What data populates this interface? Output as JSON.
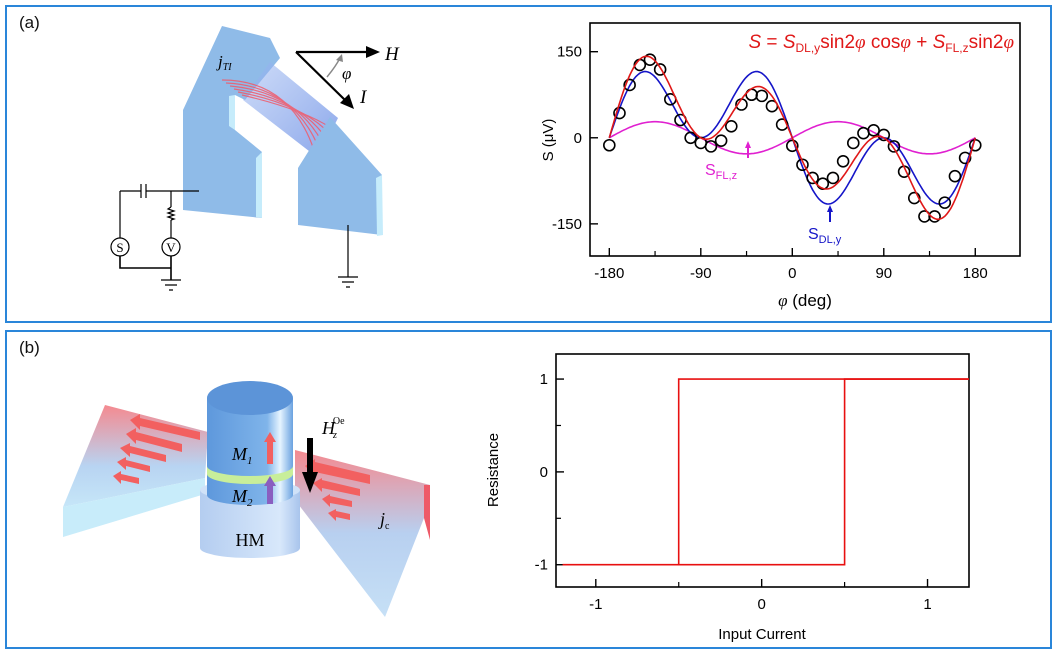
{
  "panels": {
    "a": {
      "label": "(a)",
      "diagram": {
        "current_label": "j",
        "current_sub": "TI",
        "field_label": "H",
        "angle_label": "φ",
        "current_dir_label": "I",
        "source_label": "S",
        "voltmeter_label": "V"
      }
    },
    "b": {
      "label": "(b)",
      "diagram": {
        "m1_label": "M",
        "m1_sub": "1",
        "m2_label": "M",
        "m2_sub": "2",
        "hm_label": "HM",
        "field_label": "H",
        "field_sub": "z",
        "field_sup": "Oe",
        "current_label": "j",
        "current_sub": "c"
      }
    }
  },
  "chart_data": [
    {
      "type": "scatter",
      "title": "",
      "equation": {
        "lhs": "S",
        "eq": " = ",
        "t1": "S",
        "t1_sub": "DL,y",
        "t1_fn": "sin2",
        "phi": "φ",
        "cos": " cos",
        "plus": " + ",
        "t2": "S",
        "t2_sub": "FL,z",
        "t2_fn": "sin2"
      },
      "xlabel": "φ (deg)",
      "xlabel_sym": "φ",
      "xlabel_unit": " (deg)",
      "ylabel": "S (μV)",
      "xlim": [
        -199,
        224
      ],
      "ylim": [
        -206,
        200
      ],
      "xticks": [
        -180,
        -90,
        0,
        90,
        180
      ],
      "xtick_labels": [
        "-180",
        "-90",
        "0",
        "90",
        "180"
      ],
      "yticks": [
        150,
        0,
        -150
      ],
      "ytick_labels": [
        "150",
        "0",
        "-150"
      ],
      "grid": false,
      "data": {
        "x": [
          -180,
          -170,
          -160,
          -150,
          -140,
          -130,
          -120,
          -110,
          -100,
          -90,
          -80,
          -70,
          -60,
          -50,
          -40,
          -30,
          -20,
          -10,
          0,
          10,
          20,
          30,
          40,
          50,
          60,
          70,
          80,
          90,
          100,
          110,
          120,
          130,
          140,
          150,
          160,
          170,
          180
        ],
        "y": [
          -13,
          43,
          92,
          127,
          136,
          119,
          67,
          31,
          0,
          -9,
          -15,
          -5,
          20,
          58,
          75,
          73,
          55,
          23,
          -14,
          -47,
          -70,
          -80,
          -70,
          -41,
          -9,
          8,
          13,
          5,
          -15,
          -59,
          -105,
          -137,
          -137,
          -113,
          -67,
          -35,
          -13
        ],
        "marker": "open-circle",
        "color": "#000000"
      },
      "fit": {
        "S_DL_y": -150,
        "S_FL_z": 28,
        "color": "#e01818"
      },
      "components": [
        {
          "name": "S",
          "sub": "DL,y",
          "color": "#1515c8"
        },
        {
          "name": "S",
          "sub": "FL,z",
          "color": "#e020d0"
        }
      ]
    },
    {
      "type": "line",
      "title": "",
      "xlabel": "Input Current",
      "ylabel": "Resistance",
      "xlim": [
        -1.24,
        1.25
      ],
      "ylim": [
        -1.24,
        1.27
      ],
      "xticks": [
        -1,
        0,
        1
      ],
      "xtick_labels": [
        "-1",
        "0",
        "1"
      ],
      "yticks": [
        1,
        0,
        -1
      ],
      "ytick_labels": [
        "1",
        "0",
        "-1"
      ],
      "minor_xticks": [
        -0.5,
        0.5
      ],
      "minor_yticks": [
        0.5,
        -0.5
      ],
      "grid": false,
      "series": [
        {
          "x": [
            -1.2,
            -0.5,
            -0.5,
            1.25
          ],
          "y": [
            -1,
            -1,
            1,
            1
          ],
          "color": "#e81010"
        },
        {
          "x": [
            -0.5,
            0.5,
            0.5,
            1.25
          ],
          "y": [
            -1,
            -1,
            1,
            1
          ],
          "color": "#e81010"
        }
      ]
    }
  ],
  "colors": {
    "panel_border": "#2a86d9",
    "device_blue": "#8fbbe8",
    "device_side": "#c6ecfb",
    "arrow_red": "#f06060"
  }
}
